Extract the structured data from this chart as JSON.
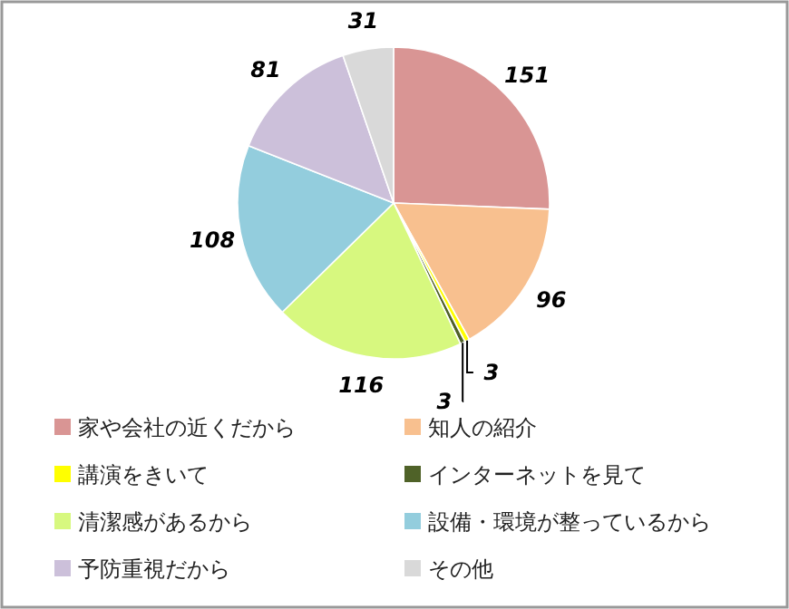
{
  "chart_data": {
    "type": "pie",
    "categories": [
      "家や会社の近くだから",
      "知人の紹介",
      "講演をきいて",
      "インターネットを見て",
      "清潔感があるから",
      "設備・環境が整っているから",
      "予防重視だから",
      "その他"
    ],
    "values": [
      151,
      96,
      3,
      3,
      116,
      108,
      81,
      31
    ],
    "colors": [
      "#d99594",
      "#f8c08f",
      "#ffff00",
      "#4f6228",
      "#d7f87f",
      "#93cddd",
      "#ccc0da",
      "#d9d9d9"
    ],
    "data_labels": true,
    "legend": "bottom"
  }
}
